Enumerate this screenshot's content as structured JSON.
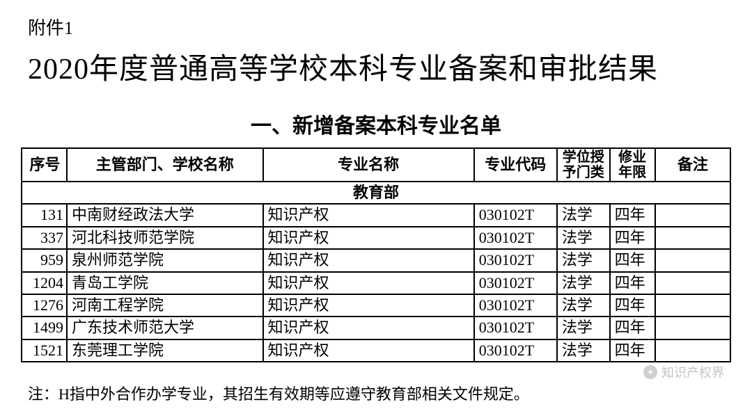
{
  "attachment_label": "附件1",
  "main_title": "2020年度普通高等学校本科专业备案和审批结果",
  "section_title": "一、新增备案本科专业名单",
  "table": {
    "columns": {
      "seq": "序号",
      "school": "主管部门、学校名称",
      "major": "专业名称",
      "code": "专业代码",
      "degree": "学位授予门类",
      "years": "修业年限",
      "note": "备注"
    },
    "department_row": "教育部",
    "rows": [
      {
        "seq": "131",
        "school": "中南财经政法大学",
        "major": "知识产权",
        "code": "030102T",
        "degree": "法学",
        "years": "四年",
        "note": ""
      },
      {
        "seq": "337",
        "school": "河北科技师范学院",
        "major": "知识产权",
        "code": "030102T",
        "degree": "法学",
        "years": "四年",
        "note": ""
      },
      {
        "seq": "959",
        "school": "泉州师范学院",
        "major": "知识产权",
        "code": "030102T",
        "degree": "法学",
        "years": "四年",
        "note": ""
      },
      {
        "seq": "1204",
        "school": "青岛工学院",
        "major": "知识产权",
        "code": "030102T",
        "degree": "法学",
        "years": "四年",
        "note": ""
      },
      {
        "seq": "1276",
        "school": "河南工程学院",
        "major": "知识产权",
        "code": "030102T",
        "degree": "法学",
        "years": "四年",
        "note": ""
      },
      {
        "seq": "1499",
        "school": "广东技术师范大学",
        "major": "知识产权",
        "code": "030102T",
        "degree": "法学",
        "years": "四年",
        "note": ""
      },
      {
        "seq": "1521",
        "school": "东莞理工学院",
        "major": "知识产权",
        "code": "030102T",
        "degree": "法学",
        "years": "四年",
        "note": ""
      }
    ]
  },
  "footnote": "注：H指中外合作办学专业，其招生有效期等应遵守教育部相关文件规定。",
  "watermark": {
    "text": "知识产权界",
    "icon_glyph": "✦"
  },
  "styling": {
    "background_color": "#ffffff",
    "text_color": "#000000",
    "border_color": "#000000",
    "watermark_color": "#9a9a9a",
    "main_title_fontsize": 42,
    "section_title_fontsize": 30,
    "table_fontsize": 22,
    "footnote_fontsize": 22,
    "border_width": 2
  }
}
